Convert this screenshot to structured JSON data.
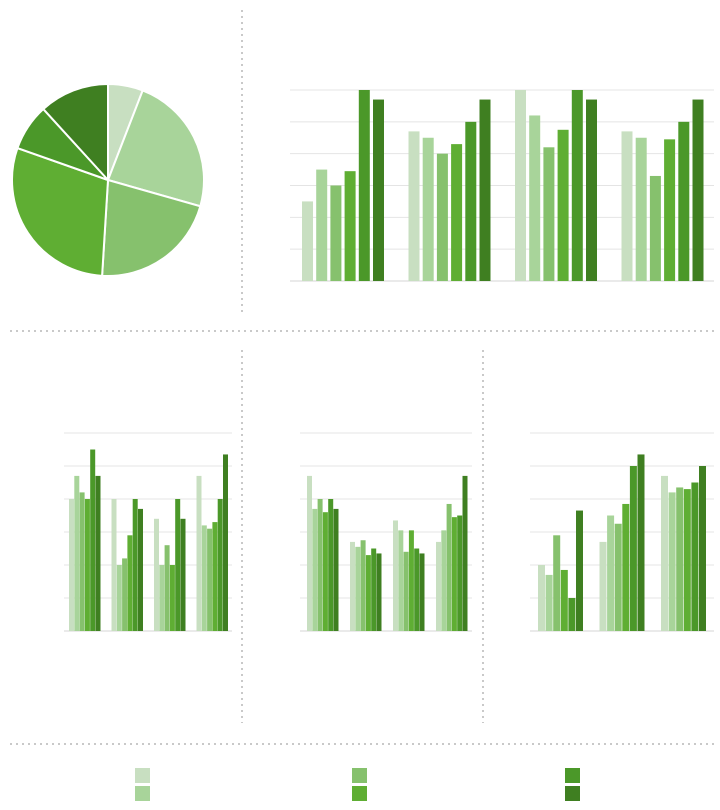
{
  "palette": [
    "#c8dfc1",
    "#a8d49a",
    "#86c16d",
    "#5fae33",
    "#4b9829",
    "#3f7f21"
  ],
  "chart_data": [
    {
      "type": "pie",
      "values": [
        6,
        24,
        22,
        30,
        8,
        12
      ],
      "colors": [
        "#c8dfc1",
        "#a8d49a",
        "#86c16d",
        "#5fae33",
        "#4b9829",
        "#3f7f21"
      ]
    },
    {
      "type": "bar",
      "ylim": [
        0,
        6
      ],
      "grid": true,
      "groups": [
        [
          2.5,
          3.5,
          3.0,
          3.45,
          6.0,
          5.7
        ],
        [
          4.7,
          4.5,
          4.0,
          4.3,
          5.0,
          5.7
        ],
        [
          6.0,
          5.2,
          4.2,
          4.75,
          6.0,
          5.7
        ],
        [
          4.7,
          4.5,
          3.3,
          4.45,
          5.0,
          5.7
        ]
      ]
    },
    {
      "type": "bar",
      "ylim": [
        0,
        6
      ],
      "grid": true,
      "groups": [
        [
          4.0,
          4.7,
          4.2,
          4.0,
          5.5,
          4.7
        ],
        [
          4.0,
          2.0,
          2.2,
          2.9,
          4.0,
          3.7
        ],
        [
          3.4,
          2.0,
          2.6,
          2.0,
          4.0,
          3.4
        ],
        [
          4.7,
          3.2,
          3.1,
          3.3,
          4.0,
          5.35
        ]
      ]
    },
    {
      "type": "bar",
      "ylim": [
        0,
        6
      ],
      "grid": true,
      "groups": [
        [
          4.7,
          3.7,
          4.0,
          3.6,
          4.0,
          3.7
        ],
        [
          2.7,
          2.55,
          2.75,
          2.3,
          2.5,
          2.35
        ],
        [
          3.35,
          3.05,
          2.4,
          3.05,
          2.5,
          2.35
        ],
        [
          2.7,
          3.05,
          3.85,
          3.45,
          3.5,
          4.7
        ]
      ]
    },
    {
      "type": "bar",
      "ylim": [
        0,
        6
      ],
      "grid": true,
      "groups": [
        [
          2.0,
          1.7,
          2.9,
          1.85,
          1.0,
          3.65
        ],
        [
          2.7,
          3.5,
          3.25,
          3.85,
          5.0,
          5.35
        ],
        [
          4.7,
          4.2,
          4.35,
          4.3,
          4.5,
          5.0
        ]
      ]
    }
  ],
  "legend": {
    "swatches": [
      {
        "color": "#c8dfc1"
      },
      {
        "color": "#a8d49a"
      },
      {
        "color": "#86c16d"
      },
      {
        "color": "#5fae33"
      },
      {
        "color": "#4b9829"
      },
      {
        "color": "#3f7f21"
      }
    ]
  }
}
